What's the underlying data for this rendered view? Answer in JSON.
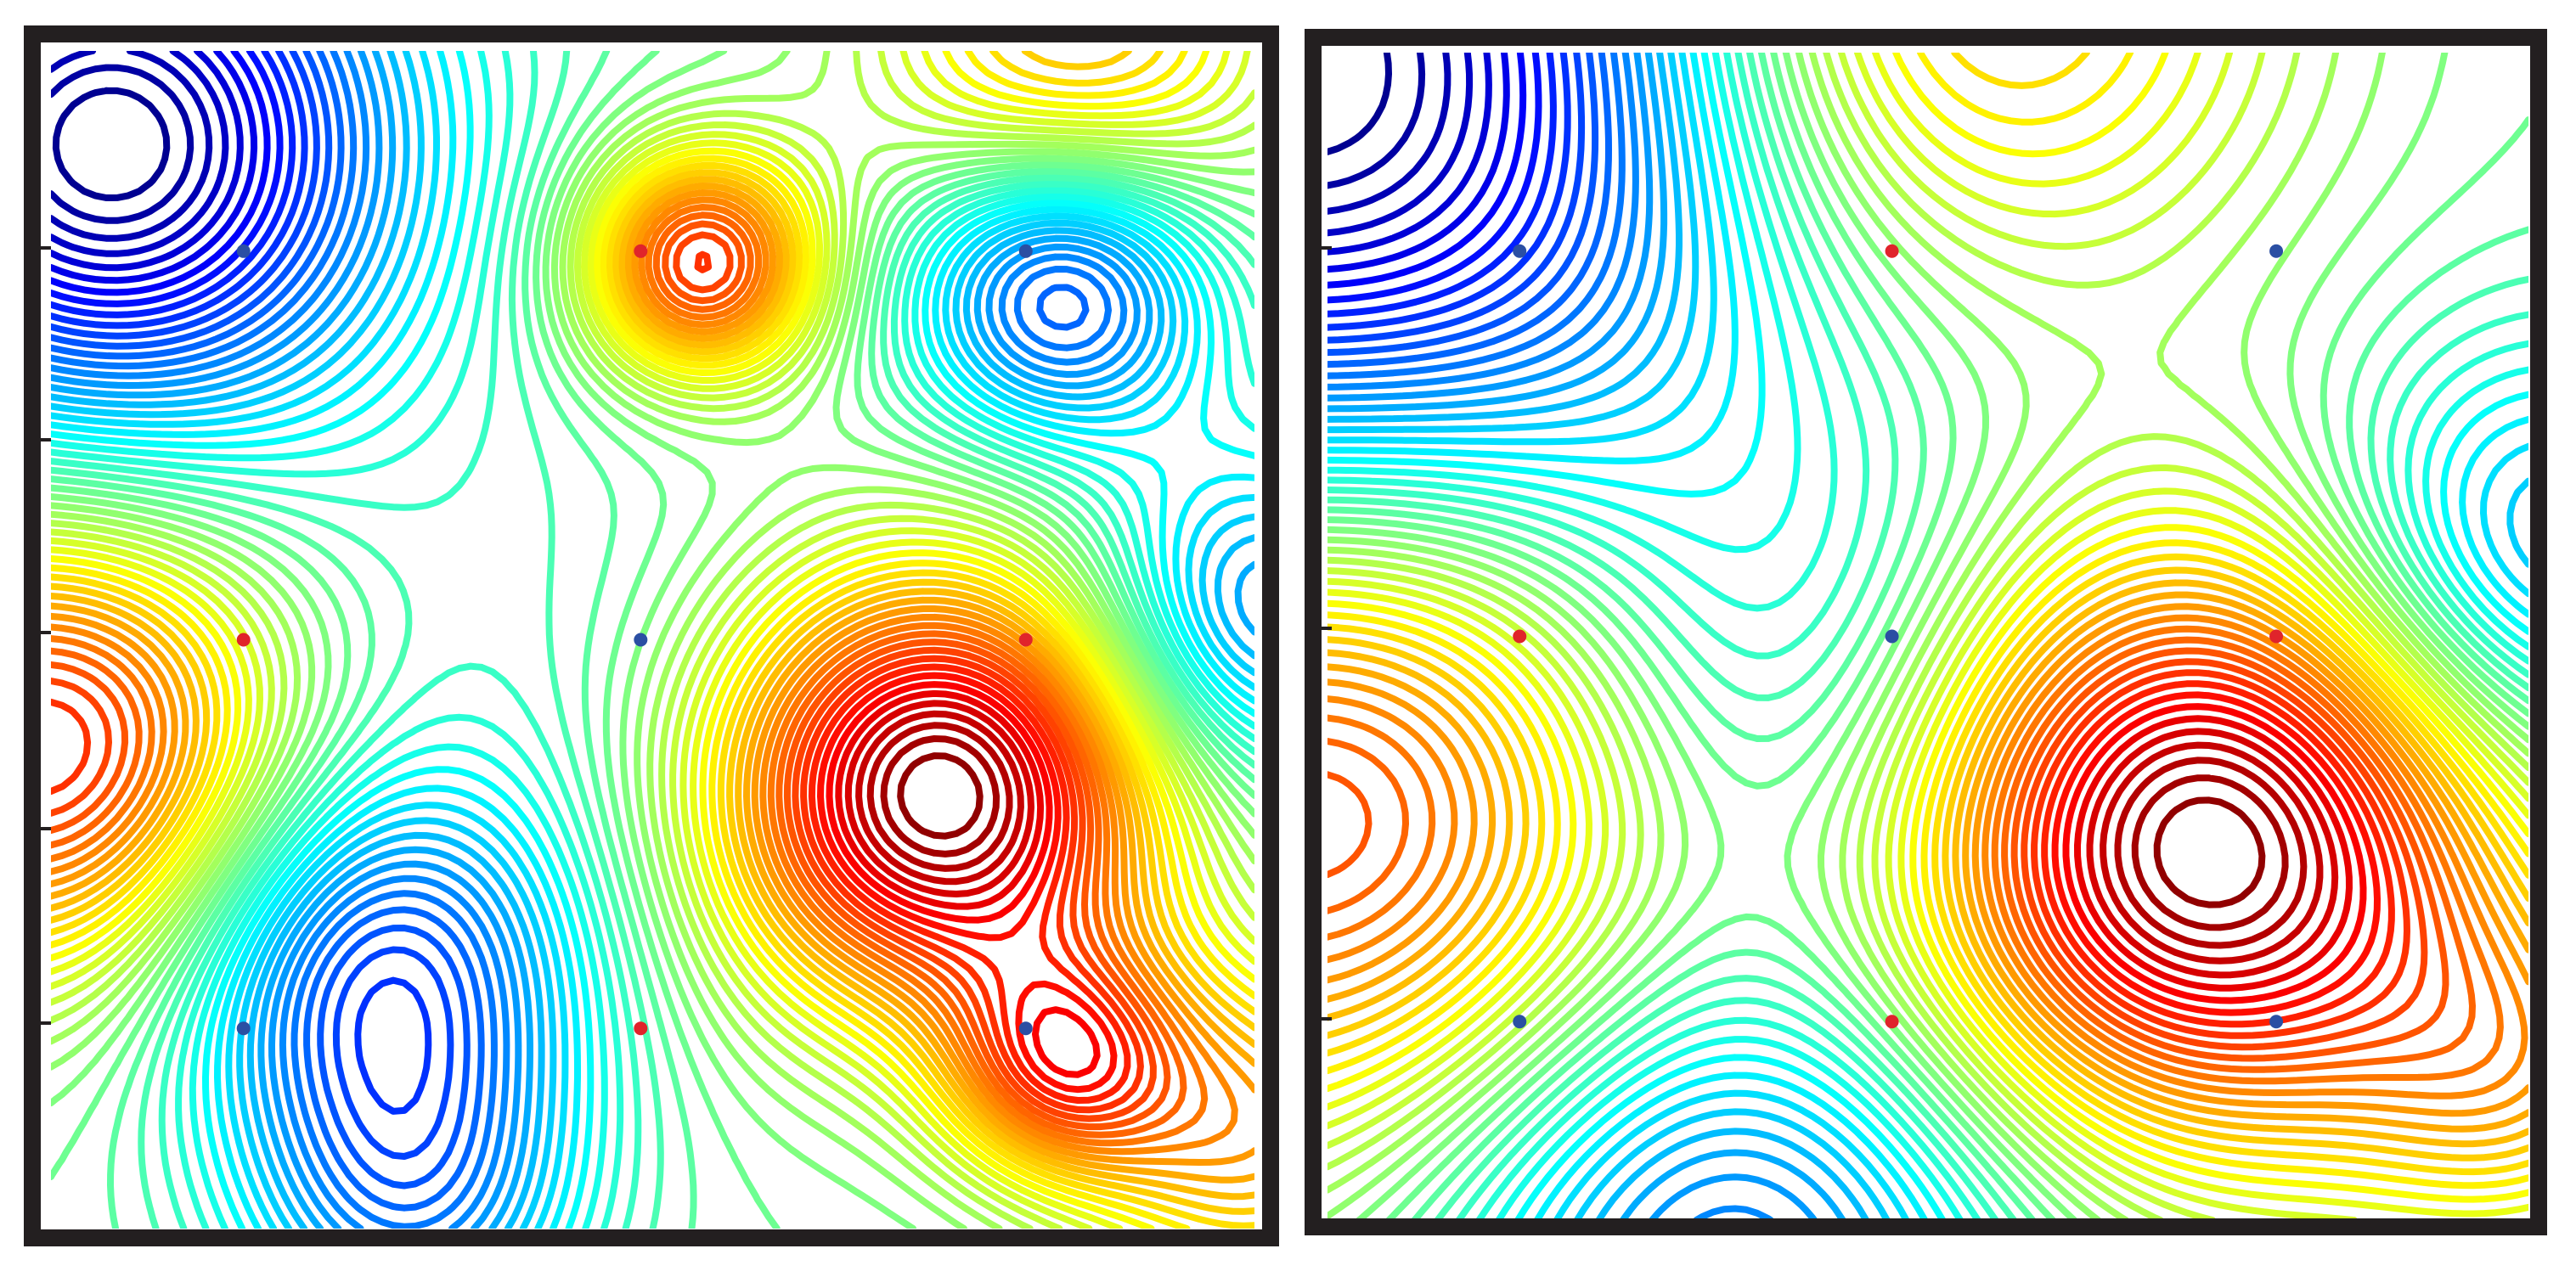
{
  "chart_data": [
    {
      "type": "contour",
      "panel": "left",
      "colormap": "jet",
      "x_range": [
        0,
        1
      ],
      "y_range": [
        0,
        1
      ],
      "extrema": [
        {
          "x": 0.05,
          "y": 0.92,
          "sign": -1,
          "amp": 1.15,
          "sigma": 0.17
        },
        {
          "x": 0.54,
          "y": 0.82,
          "sign": 1,
          "amp": 0.85,
          "sigma": 0.07
        },
        {
          "x": 0.84,
          "y": 0.8,
          "sign": -1,
          "amp": 0.75,
          "sigma": 0.09
        },
        {
          "x": 0.74,
          "y": 0.37,
          "sign": 1,
          "amp": 1.25,
          "sigma": 0.13
        },
        {
          "x": 0.0,
          "y": 0.41,
          "sign": 1,
          "amp": 0.9,
          "sigma": 0.14
        },
        {
          "x": 0.27,
          "y": 0.22,
          "sign": -1,
          "amp": 0.7,
          "sigma": 0.12
        },
        {
          "x": 0.84,
          "y": 0.14,
          "sign": 1,
          "amp": 0.65,
          "sigma": 0.07
        },
        {
          "x": 1.0,
          "y": 0.52,
          "sign": -1,
          "amp": 0.55,
          "sigma": 0.1
        },
        {
          "x": 1.0,
          "y": 0.08,
          "sign": 1,
          "amp": 0.55,
          "sigma": 0.1
        },
        {
          "x": 0.3,
          "y": 0.02,
          "sign": -1,
          "amp": 0.45,
          "sigma": 0.1
        },
        {
          "x": 0.85,
          "y": 1.0,
          "sign": 1,
          "amp": 0.55,
          "sigma": 0.12
        },
        {
          "x": 0.35,
          "y": 0.5,
          "sign": -1,
          "amp": 0.1,
          "sigma": 0.15
        }
      ],
      "markers": [
        {
          "x": 0.16,
          "y": 0.83,
          "color": "blue"
        },
        {
          "x": 0.49,
          "y": 0.83,
          "color": "red"
        },
        {
          "x": 0.81,
          "y": 0.83,
          "color": "blue"
        },
        {
          "x": 0.16,
          "y": 0.5,
          "color": "red"
        },
        {
          "x": 0.49,
          "y": 0.5,
          "color": "blue"
        },
        {
          "x": 0.81,
          "y": 0.5,
          "color": "red"
        },
        {
          "x": 0.16,
          "y": 0.17,
          "color": "blue"
        },
        {
          "x": 0.49,
          "y": 0.17,
          "color": "red"
        },
        {
          "x": 0.81,
          "y": 0.17,
          "color": "blue"
        }
      ]
    },
    {
      "type": "contour",
      "panel": "right",
      "colormap": "jet",
      "x_range": [
        0,
        1
      ],
      "y_range": [
        0,
        1
      ],
      "extrema": [
        {
          "x": 0.0,
          "y": 0.97,
          "sign": -1,
          "amp": 1.25,
          "sigma": 0.3
        },
        {
          "x": 0.73,
          "y": 0.32,
          "sign": 1,
          "amp": 1.35,
          "sigma": 0.18
        },
        {
          "x": 0.0,
          "y": 0.38,
          "sign": 1,
          "amp": 1.0,
          "sigma": 0.22
        },
        {
          "x": 0.5,
          "y": 1.05,
          "sign": 1,
          "amp": 0.75,
          "sigma": 0.2
        },
        {
          "x": 1.0,
          "y": 0.56,
          "sign": -1,
          "amp": 0.55,
          "sigma": 0.13
        },
        {
          "x": 0.33,
          "y": -0.02,
          "sign": -1,
          "amp": 0.65,
          "sigma": 0.18
        },
        {
          "x": 1.0,
          "y": 0.12,
          "sign": 1,
          "amp": 0.4,
          "sigma": 0.1
        },
        {
          "x": 0.38,
          "y": 0.45,
          "sign": -1,
          "amp": 0.3,
          "sigma": 0.15
        }
      ],
      "markers": [
        {
          "x": 0.16,
          "y": 0.83,
          "color": "blue"
        },
        {
          "x": 0.47,
          "y": 0.83,
          "color": "red"
        },
        {
          "x": 0.79,
          "y": 0.83,
          "color": "blue"
        },
        {
          "x": 0.16,
          "y": 0.5,
          "color": "red"
        },
        {
          "x": 0.47,
          "y": 0.5,
          "color": "blue"
        },
        {
          "x": 0.79,
          "y": 0.5,
          "color": "red"
        },
        {
          "x": 0.16,
          "y": 0.17,
          "color": "blue"
        },
        {
          "x": 0.47,
          "y": 0.17,
          "color": "red"
        },
        {
          "x": 0.79,
          "y": 0.17,
          "color": "blue"
        }
      ]
    }
  ],
  "colors": {
    "frame": "#231f20",
    "marker_red": "#e0242b",
    "marker_blue": "#2b4fa3",
    "background": "#ffffff"
  }
}
